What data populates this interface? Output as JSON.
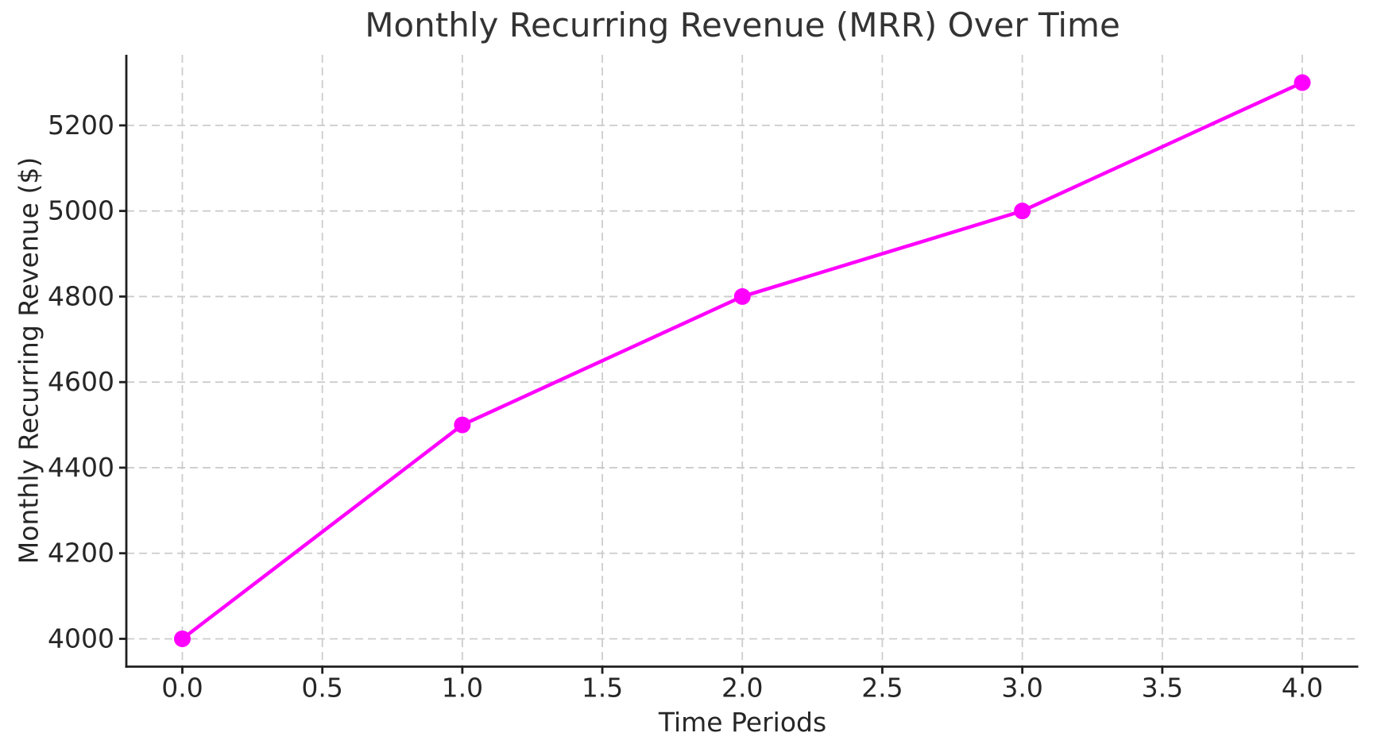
{
  "chart_data": {
    "type": "line",
    "title": "Monthly Recurring Revenue (MRR) Over Time",
    "xlabel": "Time Periods",
    "ylabel": "Monthly Recurring Revenue ($)",
    "x": [
      0,
      1,
      2,
      3,
      4
    ],
    "y": [
      4000,
      4500,
      4800,
      5000,
      5300
    ],
    "xlim": [
      -0.2,
      4.2
    ],
    "ylim": [
      3935,
      5365
    ],
    "xticks": [
      0,
      0.5,
      1,
      1.5,
      2,
      2.5,
      3,
      3.5,
      4
    ],
    "xtick_labels": [
      "0.0",
      "0.5",
      "1.0",
      "1.5",
      "2.0",
      "2.5",
      "3.0",
      "3.5",
      "4.0"
    ],
    "yticks": [
      4000,
      4200,
      4400,
      4600,
      4800,
      5000,
      5200
    ],
    "ytick_labels": [
      "4000",
      "4200",
      "4400",
      "4600",
      "4800",
      "5000",
      "5200"
    ],
    "grid": true,
    "grid_linestyle": "dashed",
    "legend": false,
    "marker": "circle",
    "colors": {
      "line": "#ff00ff",
      "marker": "#ff00ff",
      "grid": "#cccccc",
      "spine": "#1f1f1f",
      "tick_text": "#262626",
      "title_text": "#333333",
      "background": "#ffffff"
    }
  }
}
